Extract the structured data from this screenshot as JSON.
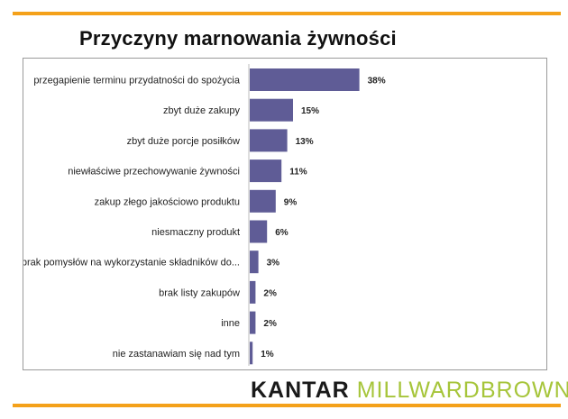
{
  "title": "Przyczyny marnowania żywności",
  "logo": {
    "kantar": "KANTAR",
    "millward": "MILLWARDBROWN"
  },
  "colors": {
    "bar": "#5f5c96",
    "rule": "#f4a11a",
    "logo_accent": "#a6c53a"
  },
  "chart_data": {
    "type": "bar",
    "orientation": "horizontal",
    "categories": [
      "przegapienie terminu przydatności do spożycia",
      "zbyt duże zakupy",
      "zbyt duże porcje posiłków",
      "niewłaściwe przechowywanie żywności",
      "zakup złego jakościowo produktu",
      "niesmaczny produkt",
      "brak pomysłów na wykorzystanie składników do...",
      "brak listy zakupów",
      "inne",
      "nie zastanawiam się nad tym"
    ],
    "values": [
      38,
      15,
      13,
      11,
      9,
      6,
      3,
      2,
      2,
      1
    ],
    "value_labels": [
      "38%",
      "15%",
      "13%",
      "11%",
      "9%",
      "6%",
      "3%",
      "2%",
      "2%",
      "1%"
    ],
    "unit": "%",
    "grid": false,
    "legend": "none"
  }
}
